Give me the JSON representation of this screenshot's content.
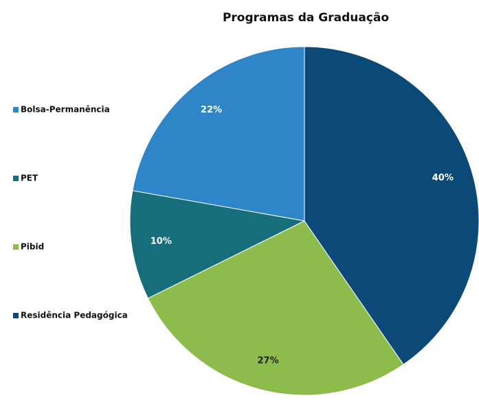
{
  "chart_data": {
    "type": "pie",
    "title": "Programas da Graduação",
    "categories": [
      "Bolsa-Permanência",
      "PET",
      "Pibid",
      "Residência Pedagógica"
    ],
    "values": [
      22,
      10,
      27,
      40
    ],
    "value_labels": [
      "22%",
      "10%",
      "27%",
      "40%"
    ],
    "colors": [
      "#2e86c8",
      "#166e7a",
      "#8dbb4c",
      "#0b4a78"
    ],
    "legend": "left"
  }
}
